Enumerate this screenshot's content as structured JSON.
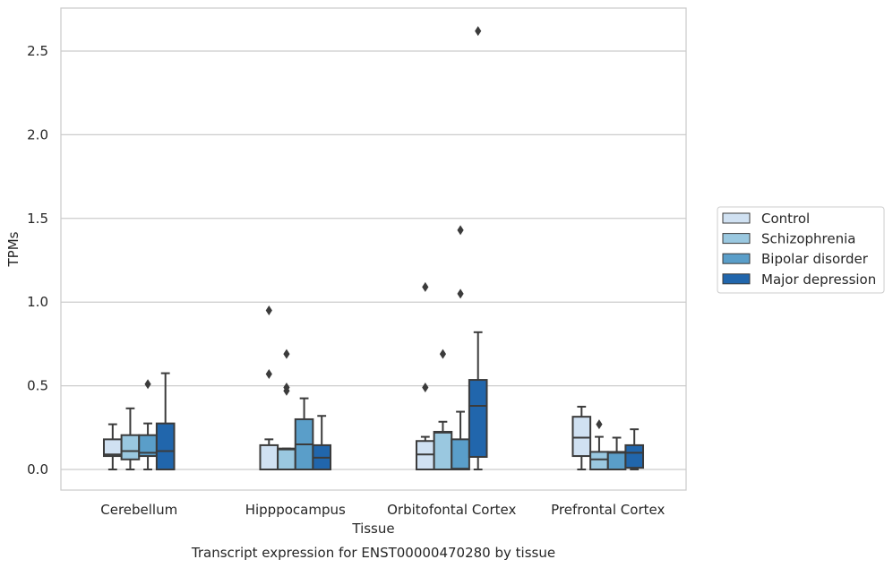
{
  "chart_data": {
    "type": "box",
    "title": "",
    "caption": "Transcript expression for ENST00000470280 by tissue",
    "xlabel": "Tissue",
    "ylabel": "TPMs",
    "ylim": [
      -0.125,
      2.75
    ],
    "yticks": [
      0.0,
      0.5,
      1.0,
      1.5,
      2.0,
      2.5
    ],
    "ytick_labels": [
      "0.0",
      "0.5",
      "1.0",
      "1.5",
      "2.0",
      "2.5"
    ],
    "grid": "horizontal",
    "legend_position": "right",
    "categories": [
      "Cerebellum",
      "Hipppocampus",
      "Orbitofontal Cortex",
      "Prefrontal Cortex"
    ],
    "series": [
      {
        "name": "Control",
        "color": "#d0e1f2",
        "boxes": [
          {
            "whislo": 0.0,
            "q1": 0.08,
            "med": 0.09,
            "q3": 0.18,
            "whishi": 0.27,
            "fliers": []
          },
          {
            "whislo": 0.0,
            "q1": 0.0,
            "med": 0.0,
            "q3": 0.145,
            "whishi": 0.18,
            "fliers": [
              0.57,
              0.95
            ]
          },
          {
            "whislo": 0.0,
            "q1": 0.0,
            "med": 0.09,
            "q3": 0.17,
            "whishi": 0.195,
            "fliers": [
              0.49,
              1.09
            ]
          },
          {
            "whislo": 0.0,
            "q1": 0.08,
            "med": 0.19,
            "q3": 0.315,
            "whishi": 0.375,
            "fliers": []
          }
        ]
      },
      {
        "name": "Schizophrenia",
        "color": "#9ac8e0",
        "boxes": [
          {
            "whislo": 0.0,
            "q1": 0.06,
            "med": 0.11,
            "q3": 0.205,
            "whishi": 0.365,
            "fliers": []
          },
          {
            "whislo": 0.0,
            "q1": 0.0,
            "med": 0.12,
            "q3": 0.125,
            "whishi": 0.125,
            "fliers": [
              0.47,
              0.49,
              0.69
            ]
          },
          {
            "whislo": 0.0,
            "q1": 0.0,
            "med": 0.22,
            "q3": 0.225,
            "whishi": 0.285,
            "fliers": [
              0.69
            ]
          },
          {
            "whislo": 0.0,
            "q1": 0.0,
            "med": 0.06,
            "q3": 0.105,
            "whishi": 0.195,
            "fliers": [
              0.27
            ]
          }
        ]
      },
      {
        "name": "Bipolar disorder",
        "color": "#5a9ec9",
        "boxes": [
          {
            "whislo": 0.0,
            "q1": 0.08,
            "med": 0.1,
            "q3": 0.205,
            "whishi": 0.275,
            "fliers": [
              0.51
            ]
          },
          {
            "whislo": 0.0,
            "q1": 0.0,
            "med": 0.15,
            "q3": 0.3,
            "whishi": 0.425,
            "fliers": []
          },
          {
            "whislo": 0.0,
            "q1": 0.0,
            "med": 0.005,
            "q3": 0.18,
            "whishi": 0.345,
            "fliers": [
              1.05,
              1.43
            ]
          },
          {
            "whislo": 0.0,
            "q1": 0.0,
            "med": 0.1,
            "q3": 0.105,
            "whishi": 0.19,
            "fliers": []
          }
        ]
      },
      {
        "name": "Major depression",
        "color": "#2166ac",
        "boxes": [
          {
            "whislo": 0.0,
            "q1": 0.0,
            "med": 0.11,
            "q3": 0.275,
            "whishi": 0.575,
            "fliers": []
          },
          {
            "whislo": 0.0,
            "q1": 0.0,
            "med": 0.07,
            "q3": 0.145,
            "whishi": 0.32,
            "fliers": []
          },
          {
            "whislo": 0.0,
            "q1": 0.075,
            "med": 0.38,
            "q3": 0.535,
            "whishi": 0.82,
            "fliers": [
              2.62
            ]
          },
          {
            "whislo": 0.0,
            "q1": 0.01,
            "med": 0.1,
            "q3": 0.145,
            "whishi": 0.24,
            "fliers": []
          }
        ]
      }
    ]
  }
}
